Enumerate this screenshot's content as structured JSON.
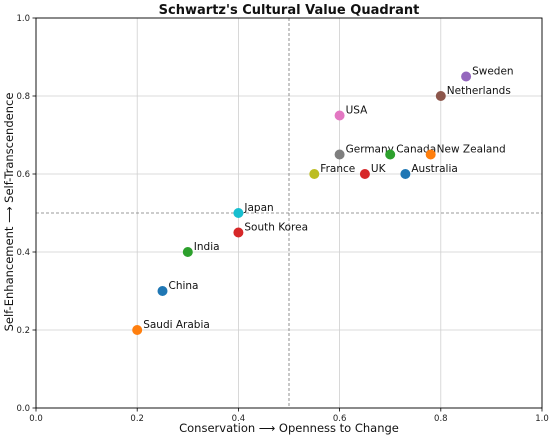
{
  "chart_data": {
    "type": "scatter",
    "title": "Schwartz's Cultural Value Quadrant",
    "xlabel": "Conservation ⟶ Openness to Change",
    "ylabel": "Self-Enhancement ⟶ Self-Transcendence",
    "xlim": [
      0.0,
      1.0
    ],
    "ylim": [
      0.0,
      1.0
    ],
    "xticks": [
      0.0,
      0.2,
      0.4,
      0.6,
      0.8,
      1.0
    ],
    "yticks": [
      0.0,
      0.2,
      0.4,
      0.6,
      0.8,
      1.0
    ],
    "xtick_labels": [
      "0.0",
      "0.2",
      "0.4",
      "0.6",
      "0.8",
      "1.0"
    ],
    "ytick_labels": [
      "0.0",
      "0.2",
      "0.4",
      "0.6",
      "0.8",
      "1.0"
    ],
    "grid": true,
    "reference_lines": {
      "x": 0.5,
      "y": 0.5,
      "style": "dashed"
    },
    "points": [
      {
        "label": "Sweden",
        "x": 0.85,
        "y": 0.85,
        "color": "#9467bd"
      },
      {
        "label": "Netherlands",
        "x": 0.8,
        "y": 0.8,
        "color": "#8c564b"
      },
      {
        "label": "USA",
        "x": 0.6,
        "y": 0.75,
        "color": "#e377c2"
      },
      {
        "label": "Germany",
        "x": 0.6,
        "y": 0.65,
        "color": "#7f7f7f"
      },
      {
        "label": "Canada",
        "x": 0.7,
        "y": 0.65,
        "color": "#2ca02c"
      },
      {
        "label": "New Zealand",
        "x": 0.78,
        "y": 0.65,
        "color": "#ff7f0e"
      },
      {
        "label": "France",
        "x": 0.55,
        "y": 0.6,
        "color": "#bcbd22"
      },
      {
        "label": "UK",
        "x": 0.65,
        "y": 0.6,
        "color": "#d62728"
      },
      {
        "label": "Australia",
        "x": 0.73,
        "y": 0.6,
        "color": "#1f77b4"
      },
      {
        "label": "Japan",
        "x": 0.4,
        "y": 0.5,
        "color": "#17becf"
      },
      {
        "label": "South Korea",
        "x": 0.4,
        "y": 0.45,
        "color": "#d62728"
      },
      {
        "label": "India",
        "x": 0.3,
        "y": 0.4,
        "color": "#2ca02c"
      },
      {
        "label": "China",
        "x": 0.25,
        "y": 0.3,
        "color": "#1f77b4"
      },
      {
        "label": "Saudi Arabia",
        "x": 0.2,
        "y": 0.2,
        "color": "#ff7f0e"
      }
    ]
  }
}
